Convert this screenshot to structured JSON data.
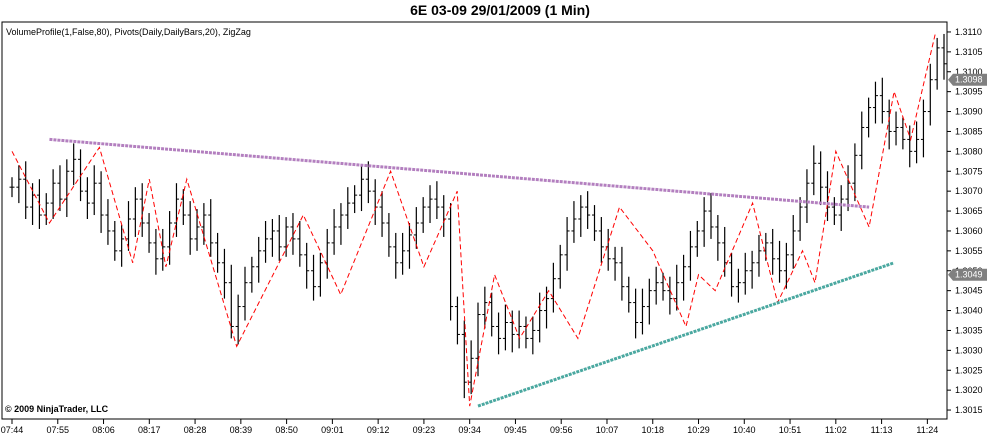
{
  "header": {
    "title": "6E 03-09  29/01/2009 (1 Min)",
    "indicators": "VolumeProfile(1,False,80), Pivots(Daily,DailyBars,20), ZigZag"
  },
  "footer": {
    "copyright": "© 2009 NinjaTrader, LLC"
  },
  "chart_data": {
    "type": "ohlc",
    "title": "6E 03-09  29/01/2009 (1 Min)",
    "x_ticks": [
      "07:44",
      "07:55",
      "08:06",
      "08:17",
      "08:28",
      "08:39",
      "08:50",
      "09:01",
      "09:12",
      "09:23",
      "09:34",
      "09:45",
      "09:56",
      "10:07",
      "10:18",
      "10:29",
      "10:40",
      "10:51",
      "11:02",
      "11:13",
      "11:24"
    ],
    "xlim": [
      "07:44",
      "11:28"
    ],
    "y_ticks": [
      1.3015,
      1.302,
      1.3025,
      1.303,
      1.3035,
      1.304,
      1.3045,
      1.305,
      1.3055,
      1.306,
      1.3065,
      1.307,
      1.3075,
      1.308,
      1.3085,
      1.309,
      1.3095,
      1.31,
      1.3105,
      1.311
    ],
    "ylim": [
      1.30125,
      1.31125
    ],
    "price_badges": [
      {
        "label": "1.3098",
        "value": 1.3098,
        "color": "#808080"
      },
      {
        "label": "1.3049",
        "value": 1.3049,
        "color": "#808080"
      }
    ],
    "close_series": [
      1.3071,
      1.3073,
      1.3066,
      1.3069,
      1.3064,
      1.3067,
      1.3072,
      1.3068,
      1.3075,
      1.3078,
      1.307,
      1.3067,
      1.3072,
      1.3064,
      1.306,
      1.3055,
      1.3058,
      1.3063,
      1.3068,
      1.3062,
      1.3057,
      1.3053,
      1.3056,
      1.3062,
      1.3068,
      1.3064,
      1.3058,
      1.3061,
      1.3064,
      1.3057,
      1.3052,
      1.3047,
      1.3036,
      1.3041,
      1.3047,
      1.3051,
      1.3055,
      1.3058,
      1.306,
      1.3056,
      1.3061,
      1.3058,
      1.3054,
      1.305,
      1.3046,
      1.3052,
      1.3057,
      1.3061,
      1.3064,
      1.3067,
      1.3069,
      1.3073,
      1.307,
      1.3066,
      1.3062,
      1.3056,
      1.3052,
      1.3055,
      1.3059,
      1.3062,
      1.3066,
      1.3068,
      1.3066,
      1.3063,
      1.3041,
      1.3034,
      1.3022,
      1.3028,
      1.3039,
      1.3042,
      1.3036,
      1.3033,
      1.3037,
      1.3034,
      1.3036,
      1.3033,
      1.3035,
      1.304,
      1.3043,
      1.3048,
      1.3054,
      1.306,
      1.3063,
      1.3066,
      1.3064,
      1.306,
      1.3056,
      1.3053,
      1.3052,
      1.3046,
      1.3042,
      1.3037,
      1.3041,
      1.3045,
      1.3047,
      1.3045,
      1.3043,
      1.3047,
      1.3051,
      1.3056,
      1.306,
      1.3065,
      1.3061,
      1.3057,
      1.3052,
      1.3046,
      1.3047,
      1.305,
      1.3052,
      1.3055,
      1.3057,
      1.3053,
      1.305,
      1.3054,
      1.306,
      1.3066,
      1.3072,
      1.3077,
      1.3071,
      1.3066,
      1.3064,
      1.3068,
      1.3072,
      1.3079,
      1.3086,
      1.3091,
      1.3094,
      1.309,
      1.3085,
      1.3086,
      1.3083,
      1.308,
      1.3083,
      1.309,
      1.3098,
      1.3106,
      1.3102
    ],
    "zigzag_pivots": [
      {
        "time": "07:44",
        "value": 1.308
      },
      {
        "time": "07:53",
        "value": 1.3062
      },
      {
        "time": "08:05",
        "value": 1.3081
      },
      {
        "time": "08:13",
        "value": 1.3052
      },
      {
        "time": "08:17",
        "value": 1.3073
      },
      {
        "time": "08:21",
        "value": 1.3051
      },
      {
        "time": "08:26",
        "value": 1.3073
      },
      {
        "time": "08:38",
        "value": 1.3031
      },
      {
        "time": "08:54",
        "value": 1.3064
      },
      {
        "time": "09:03",
        "value": 1.3044
      },
      {
        "time": "09:15",
        "value": 1.3075
      },
      {
        "time": "09:23",
        "value": 1.3051
      },
      {
        "time": "09:31",
        "value": 1.307
      },
      {
        "time": "09:34",
        "value": 1.3016
      },
      {
        "time": "09:40",
        "value": 1.3049
      },
      {
        "time": "09:46",
        "value": 1.3033
      },
      {
        "time": "09:53",
        "value": 1.3045
      },
      {
        "time": "10:00",
        "value": 1.3033
      },
      {
        "time": "10:10",
        "value": 1.3066
      },
      {
        "time": "10:18",
        "value": 1.3055
      },
      {
        "time": "10:26",
        "value": 1.3036
      },
      {
        "time": "10:29",
        "value": 1.3049
      },
      {
        "time": "10:33",
        "value": 1.3045
      },
      {
        "time": "10:42",
        "value": 1.3067
      },
      {
        "time": "10:48",
        "value": 1.3042
      },
      {
        "time": "10:54",
        "value": 1.3055
      },
      {
        "time": "10:57",
        "value": 1.3047
      },
      {
        "time": "11:02",
        "value": 1.308
      },
      {
        "time": "11:10",
        "value": 1.3061
      },
      {
        "time": "11:16",
        "value": 1.3095
      },
      {
        "time": "11:20",
        "value": 1.3083
      },
      {
        "time": "11:26",
        "value": 1.311
      }
    ],
    "trendlines": [
      {
        "name": "resistance",
        "color": "#b37fbf",
        "from": {
          "time": "07:53",
          "value": 1.3083
        },
        "to": {
          "time": "11:10",
          "value": 1.3066
        }
      },
      {
        "name": "support",
        "color": "#4aa8a0",
        "from": {
          "time": "09:36",
          "value": 1.3016
        },
        "to": {
          "time": "11:16",
          "value": 1.3052
        }
      }
    ],
    "colors": {
      "bars": "#000000",
      "zigzag": "#ff0000"
    }
  }
}
